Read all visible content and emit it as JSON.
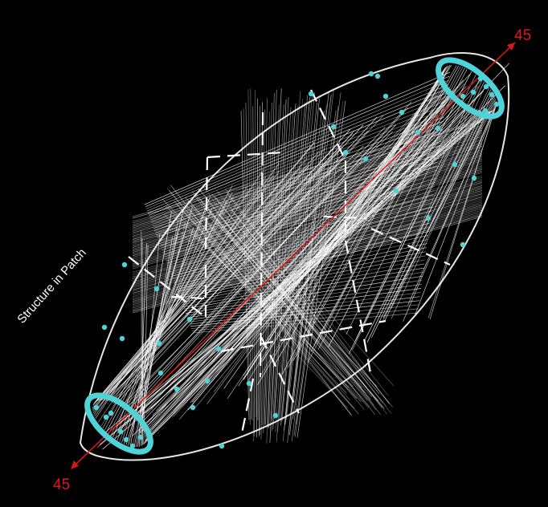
{
  "diagram": {
    "side_label": "Structure in Patch",
    "axis_label_top": "45",
    "axis_label_bottom": "45",
    "line_density": 0.92,
    "colors": {
      "background": "#000000",
      "outline": "#e6e6e6",
      "strings": "#ffffff",
      "dashes": "#ffffff",
      "points": "#4fd3d8",
      "axis": "#d81818",
      "label_text": "#ffffff",
      "axis_text": "#e01818"
    },
    "icons": {
      "axis_arrows": "double-arrow-icon",
      "points": "dot-icon"
    }
  }
}
